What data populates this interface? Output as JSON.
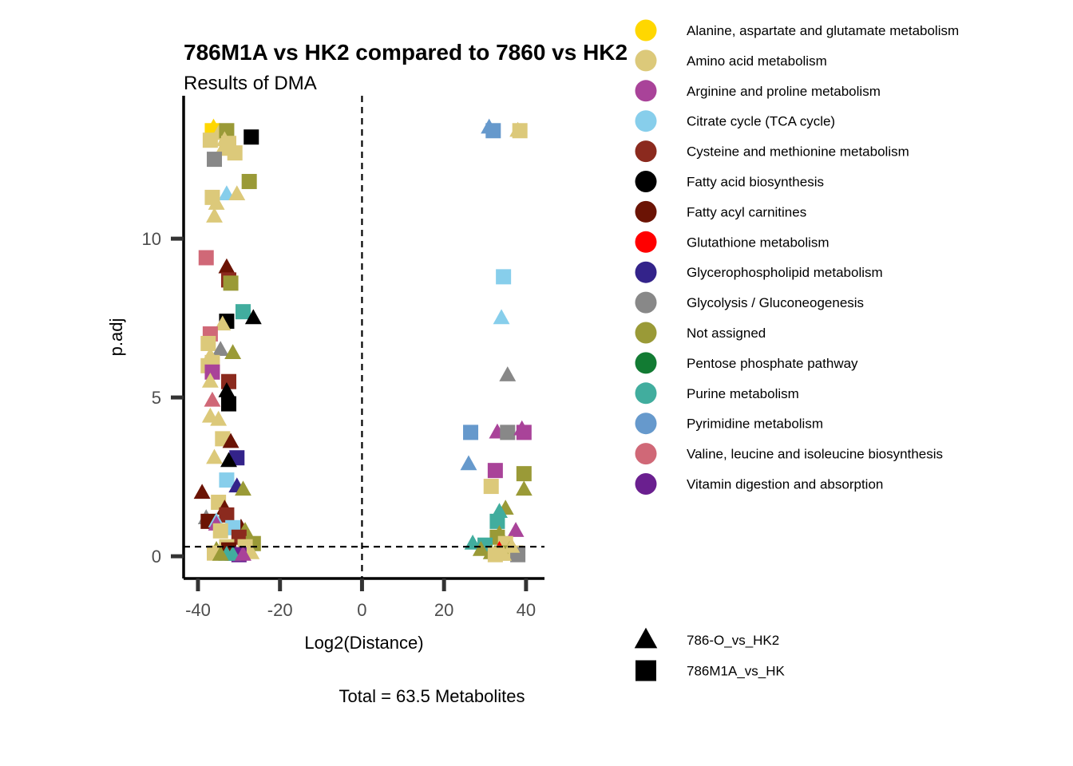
{
  "chart_data": {
    "type": "scatter",
    "title": "786M1A vs HK2 compared to 7860 vs HK2",
    "subtitle": "Results of DMA",
    "xlabel": "Log2(Distance)",
    "ylabel": "p.adj",
    "caption": "Total = 63.5 Metabolites",
    "xlim": [
      -43.5,
      44.5
    ],
    "ylim": [
      -0.7,
      14.5
    ],
    "x_ticks": [
      -40,
      -20,
      0,
      20,
      40
    ],
    "y_ticks": [
      0,
      5,
      10
    ],
    "x_tick_labels": [
      "-40",
      "-20",
      "0",
      "20",
      "40"
    ],
    "y_tick_labels": [
      "0",
      "5",
      "10"
    ],
    "reference_lines": {
      "vertical_x": 0,
      "horizontal_y": 0.3
    },
    "grid": false,
    "legend_position": "right",
    "pathways": [
      {
        "name": "Alanine, aspartate and glutamate metabolism",
        "color": "#FFD700"
      },
      {
        "name": "Amino acid metabolism",
        "color": "#DCC97A"
      },
      {
        "name": "Arginine and proline metabolism",
        "color": "#A94399"
      },
      {
        "name": "Citrate cycle (TCA cycle)",
        "color": "#87CEEB"
      },
      {
        "name": "Cysteine and methionine metabolism",
        "color": "#8B2A1E"
      },
      {
        "name": "Fatty acid biosynthesis",
        "color": "#000000"
      },
      {
        "name": "Fatty acyl carnitines",
        "color": "#6B1304"
      },
      {
        "name": "Glutathione metabolism",
        "color": "#FF0000"
      },
      {
        "name": "Glycerophospholipid metabolism",
        "color": "#33238A"
      },
      {
        "name": "Glycolysis / Gluconeogenesis",
        "color": "#888888"
      },
      {
        "name": "Not assigned",
        "color": "#9A9A37"
      },
      {
        "name": "Pentose phosphate pathway",
        "color": "#127B33"
      },
      {
        "name": "Purine metabolism",
        "color": "#41AD9E"
      },
      {
        "name": "Pyrimidine metabolism",
        "color": "#6699CC"
      },
      {
        "name": "Valine, leucine and isoleucine biosynthesis",
        "color": "#D06877"
      },
      {
        "name": "Vitamin digestion and absorption",
        "color": "#6A1F8F"
      }
    ],
    "comparisons": [
      {
        "name": "786-O_vs_HK2",
        "shape": "triangle"
      },
      {
        "name": "786M1A_vs_HK",
        "shape": "square"
      }
    ],
    "points": [
      {
        "x": -36.5,
        "y": 13.4,
        "p": 0,
        "s": 1
      },
      {
        "x": -36.2,
        "y": 13.5,
        "p": 0,
        "s": 0
      },
      {
        "x": -37.0,
        "y": 13.1,
        "p": 1,
        "s": 1
      },
      {
        "x": -35.0,
        "y": 13.3,
        "p": 1,
        "s": 0
      },
      {
        "x": -33.0,
        "y": 13.4,
        "p": 10,
        "s": 1
      },
      {
        "x": -34.0,
        "y": 12.8,
        "p": 1,
        "s": 0
      },
      {
        "x": -32.5,
        "y": 13.0,
        "p": 1,
        "s": 1
      },
      {
        "x": -33.5,
        "y": 13.1,
        "p": 1,
        "s": 0
      },
      {
        "x": -27.0,
        "y": 13.2,
        "p": 5,
        "s": 1
      },
      {
        "x": -31.0,
        "y": 12.7,
        "p": 1,
        "s": 1
      },
      {
        "x": -36.0,
        "y": 12.5,
        "p": 9,
        "s": 1
      },
      {
        "x": -27.5,
        "y": 11.8,
        "p": 10,
        "s": 1
      },
      {
        "x": -33.0,
        "y": 11.4,
        "p": 3,
        "s": 0
      },
      {
        "x": -30.5,
        "y": 11.4,
        "p": 1,
        "s": 0
      },
      {
        "x": -36.5,
        "y": 11.3,
        "p": 1,
        "s": 1
      },
      {
        "x": -35.5,
        "y": 11.1,
        "p": 1,
        "s": 0
      },
      {
        "x": -36.0,
        "y": 10.7,
        "p": 1,
        "s": 0
      },
      {
        "x": -38.0,
        "y": 9.4,
        "p": 14,
        "s": 1
      },
      {
        "x": -33.0,
        "y": 9.1,
        "p": 6,
        "s": 0
      },
      {
        "x": -32.5,
        "y": 8.7,
        "p": 4,
        "s": 1
      },
      {
        "x": -32.0,
        "y": 8.6,
        "p": 10,
        "s": 1
      },
      {
        "x": -29.0,
        "y": 7.7,
        "p": 12,
        "s": 1
      },
      {
        "x": -26.5,
        "y": 7.5,
        "p": 5,
        "s": 0
      },
      {
        "x": -33.0,
        "y": 7.4,
        "p": 5,
        "s": 1
      },
      {
        "x": -34.0,
        "y": 7.3,
        "p": 1,
        "s": 0
      },
      {
        "x": -37.0,
        "y": 7.0,
        "p": 14,
        "s": 1
      },
      {
        "x": -37.5,
        "y": 6.7,
        "p": 1,
        "s": 1
      },
      {
        "x": -34.5,
        "y": 6.5,
        "p": 9,
        "s": 0
      },
      {
        "x": -31.5,
        "y": 6.4,
        "p": 10,
        "s": 0
      },
      {
        "x": -37.0,
        "y": 6.3,
        "p": 1,
        "s": 0
      },
      {
        "x": -36.5,
        "y": 6.1,
        "p": 1,
        "s": 1
      },
      {
        "x": -37.5,
        "y": 6.0,
        "p": 1,
        "s": 1
      },
      {
        "x": -36.5,
        "y": 5.8,
        "p": 2,
        "s": 1
      },
      {
        "x": -32.5,
        "y": 5.5,
        "p": 4,
        "s": 1
      },
      {
        "x": -37.0,
        "y": 5.5,
        "p": 1,
        "s": 0
      },
      {
        "x": -33.0,
        "y": 5.2,
        "p": 5,
        "s": 0
      },
      {
        "x": -36.5,
        "y": 4.9,
        "p": 14,
        "s": 0
      },
      {
        "x": -32.5,
        "y": 4.8,
        "p": 5,
        "s": 1
      },
      {
        "x": -37.0,
        "y": 4.4,
        "p": 1,
        "s": 0
      },
      {
        "x": -35.0,
        "y": 4.3,
        "p": 1,
        "s": 0
      },
      {
        "x": -34.0,
        "y": 3.7,
        "p": 1,
        "s": 1
      },
      {
        "x": -32.0,
        "y": 3.6,
        "p": 6,
        "s": 0
      },
      {
        "x": -30.5,
        "y": 3.1,
        "p": 8,
        "s": 1
      },
      {
        "x": -36.0,
        "y": 3.1,
        "p": 1,
        "s": 0
      },
      {
        "x": -32.5,
        "y": 3.0,
        "p": 5,
        "s": 0
      },
      {
        "x": -33.0,
        "y": 2.4,
        "p": 3,
        "s": 1
      },
      {
        "x": -30.5,
        "y": 2.2,
        "p": 8,
        "s": 0
      },
      {
        "x": -29.0,
        "y": 2.1,
        "p": 10,
        "s": 0
      },
      {
        "x": -39.0,
        "y": 2.0,
        "p": 6,
        "s": 0
      },
      {
        "x": -35.0,
        "y": 1.7,
        "p": 1,
        "s": 1
      },
      {
        "x": -33.5,
        "y": 1.5,
        "p": 6,
        "s": 0
      },
      {
        "x": -33.0,
        "y": 1.3,
        "p": 4,
        "s": 1
      },
      {
        "x": -38.0,
        "y": 1.2,
        "p": 9,
        "s": 0
      },
      {
        "x": -37.5,
        "y": 1.1,
        "p": 6,
        "s": 1
      },
      {
        "x": -35.5,
        "y": 1.1,
        "p": 3,
        "s": 0
      },
      {
        "x": -35.5,
        "y": 1.0,
        "p": 2,
        "s": 0
      },
      {
        "x": -29.5,
        "y": 0.9,
        "p": 6,
        "s": 0
      },
      {
        "x": -31.5,
        "y": 0.9,
        "p": 3,
        "s": 1
      },
      {
        "x": -28.5,
        "y": 0.8,
        "p": 10,
        "s": 0
      },
      {
        "x": -34.5,
        "y": 0.8,
        "p": 1,
        "s": 1
      },
      {
        "x": -30.0,
        "y": 0.6,
        "p": 4,
        "s": 1
      },
      {
        "x": -26.5,
        "y": 0.4,
        "p": 10,
        "s": 1
      },
      {
        "x": -33.0,
        "y": 0.3,
        "p": 1,
        "s": 1
      },
      {
        "x": -28.5,
        "y": 0.3,
        "p": 1,
        "s": 1
      },
      {
        "x": -35.5,
        "y": 0.2,
        "p": 10,
        "s": 0
      },
      {
        "x": -32.5,
        "y": 0.2,
        "p": 6,
        "s": 1
      },
      {
        "x": -27.0,
        "y": 0.1,
        "p": 1,
        "s": 0
      },
      {
        "x": -36.0,
        "y": 0.1,
        "p": 1,
        "s": 1
      },
      {
        "x": -31.0,
        "y": 0.05,
        "p": 15,
        "s": 0
      },
      {
        "x": -30.0,
        "y": 0.05,
        "p": 15,
        "s": 1
      },
      {
        "x": -33.0,
        "y": 0.05,
        "p": 12,
        "s": 0
      },
      {
        "x": -31.5,
        "y": 0.05,
        "p": 12,
        "s": 0
      },
      {
        "x": -29.0,
        "y": 0.05,
        "p": 2,
        "s": 0
      },
      {
        "x": -34.5,
        "y": 0.05,
        "p": 10,
        "s": 0
      },
      {
        "x": 31.0,
        "y": 13.5,
        "p": 13,
        "s": 0
      },
      {
        "x": 32.0,
        "y": 13.4,
        "p": 13,
        "s": 1
      },
      {
        "x": 38.0,
        "y": 13.4,
        "p": 1,
        "s": 0
      },
      {
        "x": 38.5,
        "y": 13.4,
        "p": 1,
        "s": 1
      },
      {
        "x": 34.5,
        "y": 8.8,
        "p": 3,
        "s": 1
      },
      {
        "x": 34.0,
        "y": 7.5,
        "p": 3,
        "s": 0
      },
      {
        "x": 35.5,
        "y": 5.7,
        "p": 9,
        "s": 0
      },
      {
        "x": 26.5,
        "y": 3.9,
        "p": 13,
        "s": 1
      },
      {
        "x": 33.0,
        "y": 3.9,
        "p": 2,
        "s": 0
      },
      {
        "x": 35.5,
        "y": 3.9,
        "p": 9,
        "s": 1
      },
      {
        "x": 39.0,
        "y": 4.0,
        "p": 2,
        "s": 0
      },
      {
        "x": 39.5,
        "y": 3.9,
        "p": 2,
        "s": 1
      },
      {
        "x": 26.0,
        "y": 2.9,
        "p": 13,
        "s": 0
      },
      {
        "x": 32.5,
        "y": 2.7,
        "p": 2,
        "s": 1
      },
      {
        "x": 39.5,
        "y": 2.6,
        "p": 10,
        "s": 1
      },
      {
        "x": 31.5,
        "y": 2.2,
        "p": 1,
        "s": 1
      },
      {
        "x": 39.5,
        "y": 2.1,
        "p": 10,
        "s": 0
      },
      {
        "x": 35.0,
        "y": 1.5,
        "p": 10,
        "s": 0
      },
      {
        "x": 33.5,
        "y": 1.4,
        "p": 12,
        "s": 0
      },
      {
        "x": 33.0,
        "y": 1.1,
        "p": 12,
        "s": 1
      },
      {
        "x": 37.5,
        "y": 0.8,
        "p": 2,
        "s": 0
      },
      {
        "x": 33.5,
        "y": 0.7,
        "p": 10,
        "s": 0
      },
      {
        "x": 33.0,
        "y": 0.6,
        "p": 10,
        "s": 1
      },
      {
        "x": 27.0,
        "y": 0.4,
        "p": 12,
        "s": 0
      },
      {
        "x": 30.0,
        "y": 0.35,
        "p": 12,
        "s": 1
      },
      {
        "x": 35.0,
        "y": 0.4,
        "p": 1,
        "s": 1
      },
      {
        "x": 29.0,
        "y": 0.2,
        "p": 10,
        "s": 0
      },
      {
        "x": 31.5,
        "y": 0.1,
        "p": 10,
        "s": 0
      },
      {
        "x": 33.5,
        "y": 0.2,
        "p": 7,
        "s": 0
      },
      {
        "x": 34.0,
        "y": 0.1,
        "p": 10,
        "s": 1
      },
      {
        "x": 36.0,
        "y": 0.2,
        "p": 10,
        "s": 0
      },
      {
        "x": 37.5,
        "y": 0.1,
        "p": 1,
        "s": 1
      },
      {
        "x": 38.0,
        "y": 0.05,
        "p": 9,
        "s": 1
      },
      {
        "x": 32.5,
        "y": 0.05,
        "p": 1,
        "s": 1
      },
      {
        "x": 36.5,
        "y": 0.3,
        "p": 1,
        "s": 0
      },
      {
        "x": 34.5,
        "y": 0.05,
        "p": 1,
        "s": 0
      }
    ]
  }
}
